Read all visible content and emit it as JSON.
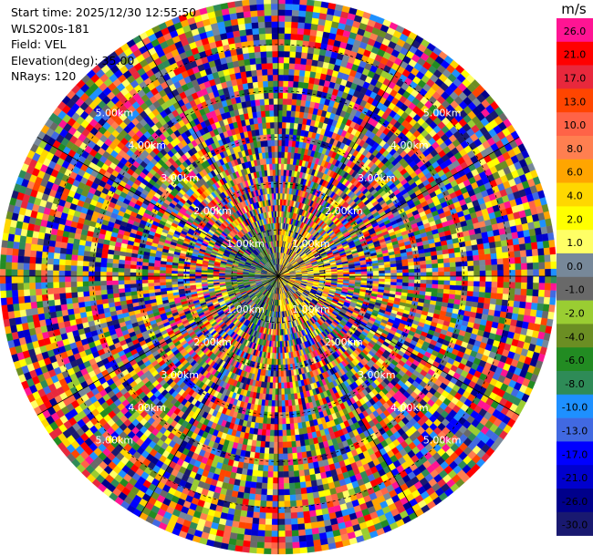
{
  "header": {
    "start_time": "Start time: 2025/12/30 12:55:50",
    "instrument": "WLS200s-181",
    "field": "Field: VEL",
    "elevation": "Elevation(deg): 35.00",
    "nrays": "NRays: 120"
  },
  "colorbar": {
    "unit": "m/s",
    "levels": [
      {
        "label": "26.0",
        "color": "#ff1493"
      },
      {
        "label": "21.0",
        "color": "#ff0000"
      },
      {
        "label": "17.0",
        "color": "#e8283c"
      },
      {
        "label": "13.0",
        "color": "#ff4500"
      },
      {
        "label": "10.0",
        "color": "#ff6347"
      },
      {
        "label": "8.0",
        "color": "#ff7f50"
      },
      {
        "label": "6.0",
        "color": "#ffa500"
      },
      {
        "label": "4.0",
        "color": "#ffd700"
      },
      {
        "label": "2.0",
        "color": "#ffff00"
      },
      {
        "label": "1.0",
        "color": "#ffff66"
      },
      {
        "label": "0.0",
        "color": "#778899"
      },
      {
        "label": "-1.0",
        "color": "#696969"
      },
      {
        "label": "-2.0",
        "color": "#9acd32"
      },
      {
        "label": "-4.0",
        "color": "#6b8e23"
      },
      {
        "label": "-6.0",
        "color": "#228b22"
      },
      {
        "label": "-8.0",
        "color": "#2e8b57"
      },
      {
        "label": "-10.0",
        "color": "#1e90ff"
      },
      {
        "label": "-13.0",
        "color": "#4169e1"
      },
      {
        "label": "-17.0",
        "color": "#0000ff"
      },
      {
        "label": "-21.0",
        "color": "#0000cd"
      },
      {
        "label": "-26.0",
        "color": "#00008b"
      },
      {
        "label": "-30.0",
        "color": "#191970"
      }
    ]
  },
  "chart_data": {
    "type": "heatmap",
    "projection": "polar-ppi",
    "field": "VEL",
    "units": "m/s",
    "elevation_deg": 35.0,
    "n_rays": 120,
    "ring_labels": [
      "1.00km",
      "2.00km",
      "3.00km",
      "4.00km",
      "5.00km"
    ],
    "ring_values_km": [
      1,
      2,
      3,
      4,
      5
    ],
    "max_range_km": 6.0,
    "spoke_angles_deg": [
      0,
      30,
      60,
      90,
      120,
      150,
      180,
      210,
      240,
      270,
      300,
      330
    ]
  }
}
